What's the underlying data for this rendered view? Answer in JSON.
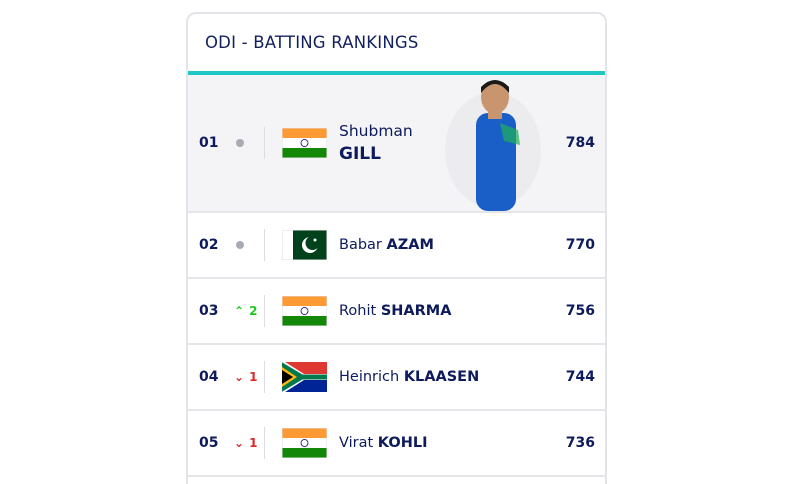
{
  "title": "ODI - BATTING RANKINGS",
  "colors": {
    "accent": "#1fc8c4",
    "text": "#0d1a5c",
    "up": "#1ec81e",
    "down": "#e02424",
    "neutral": "#a8abb3"
  },
  "rows": [
    {
      "rank": "01",
      "movement": "none",
      "change": "",
      "first": "Shubman",
      "last": "GILL",
      "flag": "india",
      "points": "784"
    },
    {
      "rank": "02",
      "movement": "none",
      "change": "",
      "first": "Babar",
      "last": "AZAM",
      "flag": "pakistan",
      "points": "770"
    },
    {
      "rank": "03",
      "movement": "up",
      "change": "2",
      "first": "Rohit",
      "last": "SHARMA",
      "flag": "india",
      "points": "756"
    },
    {
      "rank": "04",
      "movement": "down",
      "change": "1",
      "first": "Heinrich",
      "last": "KLAASEN",
      "flag": "south-africa",
      "points": "744"
    },
    {
      "rank": "05",
      "movement": "down",
      "change": "1",
      "first": "Virat",
      "last": "KOHLI",
      "flag": "india",
      "points": "736"
    }
  ]
}
